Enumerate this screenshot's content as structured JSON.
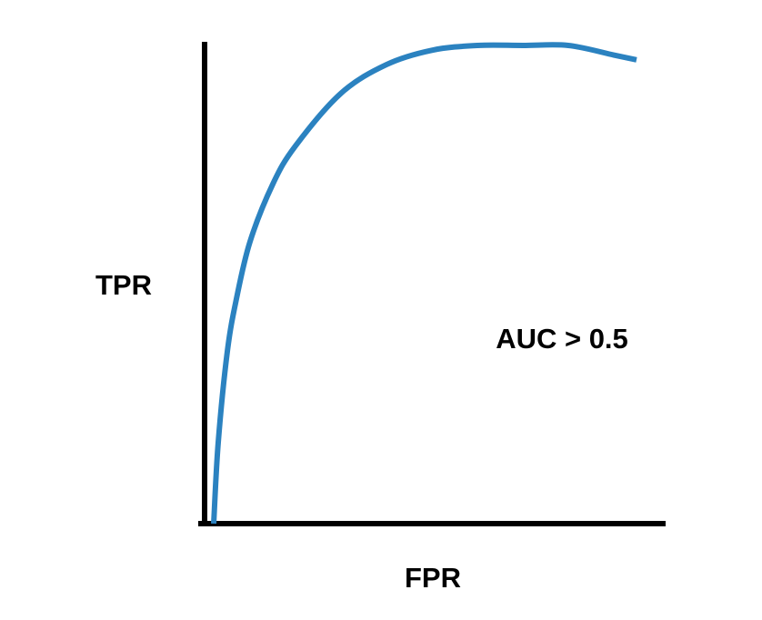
{
  "chart_data": {
    "type": "line",
    "xlabel": "FPR",
    "ylabel": "TPR",
    "annotations": [
      "AUC > 0.5"
    ],
    "xlim": [
      0,
      1
    ],
    "ylim": [
      0,
      1
    ],
    "grid": false,
    "series": [
      {
        "x": [
          0.02,
          0.03,
          0.05,
          0.07,
          0.1,
          0.15,
          0.2,
          0.3,
          0.4,
          0.5,
          0.6,
          0.7,
          0.8,
          0.9,
          0.95
        ],
        "y": [
          0.0,
          0.17,
          0.36,
          0.47,
          0.59,
          0.71,
          0.79,
          0.9,
          0.96,
          0.99,
          1.0,
          1.0,
          1.0,
          0.98,
          0.97
        ]
      }
    ]
  },
  "colors": {
    "curve": "#2b82c0",
    "axes": "#000000"
  }
}
